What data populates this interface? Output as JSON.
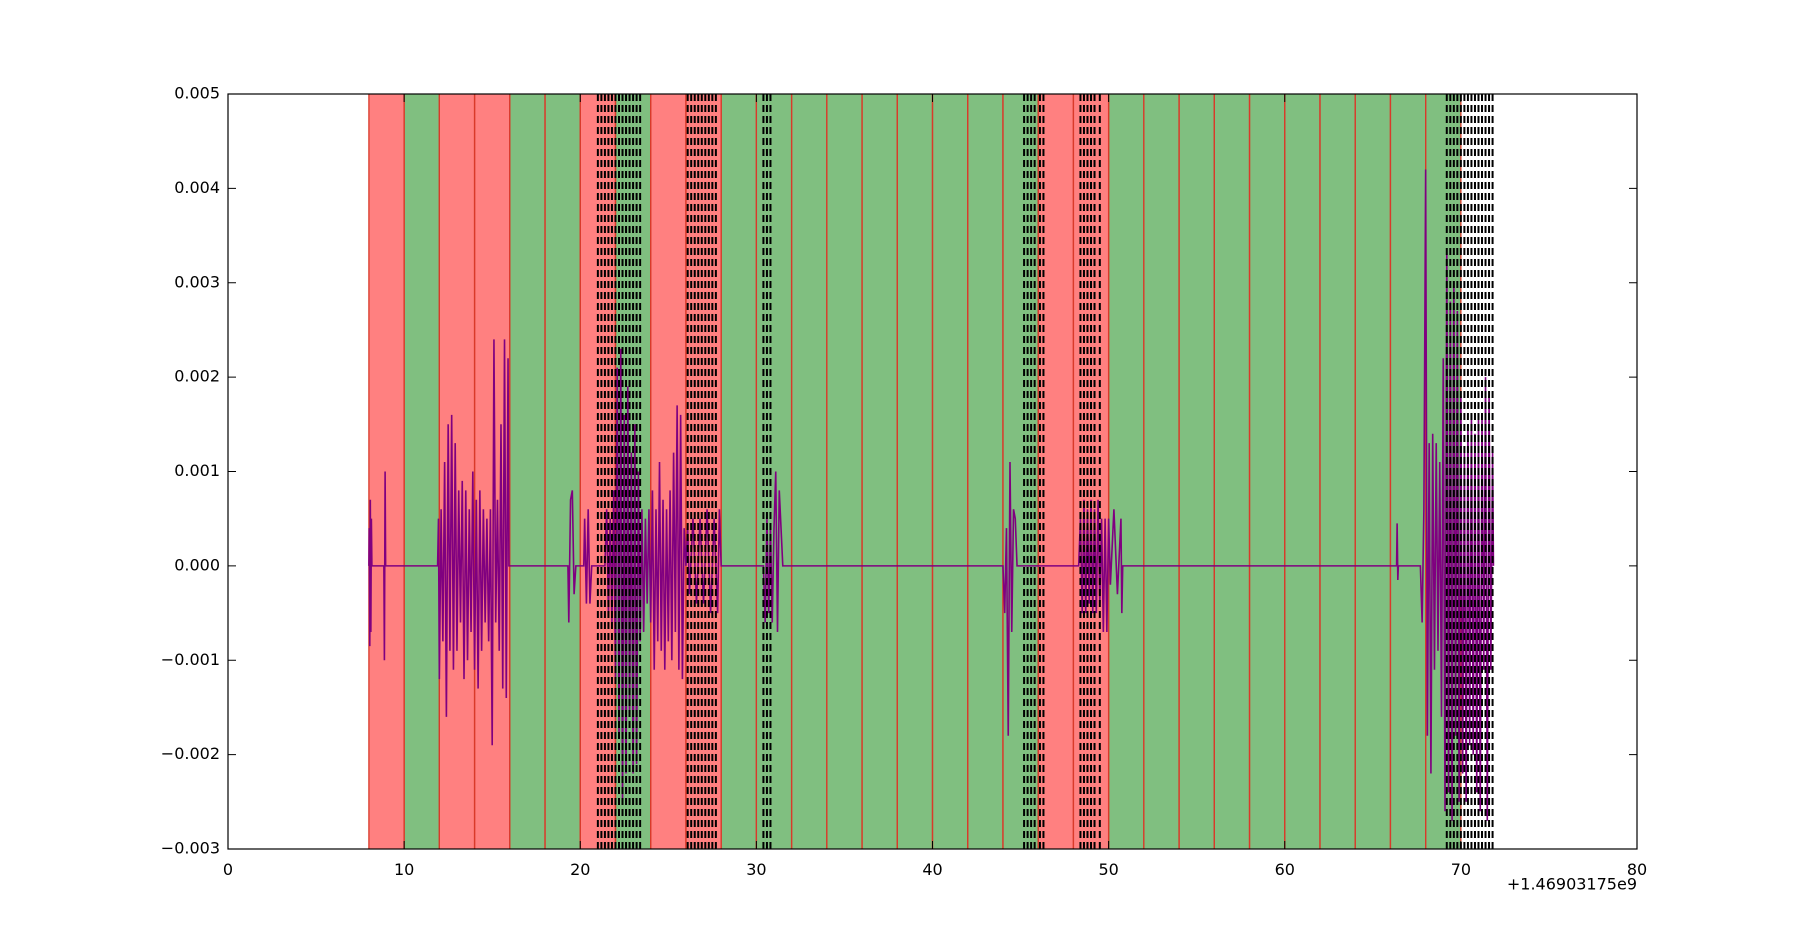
{
  "chart_data": {
    "type": "line",
    "x_offset_label": "+1.46903175e9",
    "xlim": [
      0,
      80
    ],
    "xticks": [
      0,
      10,
      20,
      30,
      40,
      50,
      60,
      70,
      80
    ],
    "ylim": [
      -0.003,
      0.005
    ],
    "yticks": [
      {
        "value": -0.003,
        "label": "−0.003"
      },
      {
        "value": -0.002,
        "label": "−0.002"
      },
      {
        "value": -0.001,
        "label": "−0.001"
      },
      {
        "value": 0,
        "label": "0.000"
      },
      0.001,
      0.002,
      0.003,
      0.004,
      0.005
    ],
    "spans": [
      {
        "start": 8,
        "end": 10,
        "color": "#ff8080"
      },
      {
        "start": 10,
        "end": 12,
        "color": "#80bf80"
      },
      {
        "start": 12,
        "end": 14,
        "color": "#ff8080"
      },
      {
        "start": 14,
        "end": 16,
        "color": "#ff8080"
      },
      {
        "start": 16,
        "end": 18,
        "color": "#80bf80"
      },
      {
        "start": 18,
        "end": 20,
        "color": "#80bf80"
      },
      {
        "start": 20,
        "end": 22,
        "color": "#ff8080"
      },
      {
        "start": 22,
        "end": 24,
        "color": "#80bf80"
      },
      {
        "start": 24,
        "end": 26,
        "color": "#ff8080"
      },
      {
        "start": 26,
        "end": 28,
        "color": "#ff8080"
      },
      {
        "start": 28,
        "end": 30,
        "color": "#80bf80"
      },
      {
        "start": 30,
        "end": 32,
        "color": "#80bf80"
      },
      {
        "start": 32,
        "end": 34,
        "color": "#80bf80"
      },
      {
        "start": 34,
        "end": 36,
        "color": "#80bf80"
      },
      {
        "start": 36,
        "end": 38,
        "color": "#80bf80"
      },
      {
        "start": 38,
        "end": 40,
        "color": "#80bf80"
      },
      {
        "start": 40,
        "end": 42,
        "color": "#80bf80"
      },
      {
        "start": 42,
        "end": 44,
        "color": "#80bf80"
      },
      {
        "start": 44,
        "end": 46,
        "color": "#80bf80"
      },
      {
        "start": 46,
        "end": 48,
        "color": "#ff8080"
      },
      {
        "start": 48,
        "end": 50,
        "color": "#ff8080"
      },
      {
        "start": 50,
        "end": 52,
        "color": "#80bf80"
      },
      {
        "start": 52,
        "end": 54,
        "color": "#80bf80"
      },
      {
        "start": 54,
        "end": 56,
        "color": "#80bf80"
      },
      {
        "start": 56,
        "end": 58,
        "color": "#80bf80"
      },
      {
        "start": 58,
        "end": 60,
        "color": "#80bf80"
      },
      {
        "start": 60,
        "end": 62,
        "color": "#80bf80"
      },
      {
        "start": 62,
        "end": 64,
        "color": "#80bf80"
      },
      {
        "start": 64,
        "end": 66,
        "color": "#80bf80"
      },
      {
        "start": 66,
        "end": 68,
        "color": "#80bf80"
      },
      {
        "start": 68,
        "end": 70,
        "color": "#80bf80"
      }
    ],
    "span_edge_color": "#d93a2a",
    "vlines": [
      21.0,
      21.2,
      21.4,
      21.6,
      21.8,
      22.0,
      22.2,
      22.4,
      22.6,
      22.8,
      23.0,
      23.2,
      23.4,
      26.1,
      26.3,
      26.5,
      26.7,
      26.9,
      27.1,
      27.3,
      27.5,
      27.7,
      30.4,
      30.6,
      30.8,
      45.2,
      45.4,
      45.6,
      45.8,
      46.1,
      46.3,
      48.4,
      48.6,
      48.8,
      49.0,
      49.2,
      49.5,
      69.2,
      69.4,
      69.6,
      69.8,
      70.0,
      70.2,
      70.4,
      70.6,
      70.8,
      71.0,
      71.2,
      71.4,
      71.6,
      71.8
    ],
    "vline_color": "#000000",
    "series": [
      {
        "color": "#800080",
        "x": [
          8.0,
          8.02,
          8.05,
          8.08,
          8.11,
          8.14,
          8.17,
          8.85,
          8.88,
          8.92,
          8.95,
          11.9,
          11.95,
          12.0,
          12.1,
          12.2,
          12.3,
          12.4,
          12.5,
          12.6,
          12.7,
          12.8,
          12.9,
          13.0,
          13.1,
          13.2,
          13.3,
          13.4,
          13.5,
          13.6,
          13.7,
          13.8,
          13.9,
          14.0,
          14.1,
          14.2,
          14.3,
          14.4,
          14.5,
          14.6,
          14.7,
          14.8,
          14.9,
          15.0,
          15.1,
          15.2,
          15.3,
          15.4,
          15.5,
          15.6,
          15.7,
          15.8,
          15.9,
          15.95,
          19.3,
          19.35,
          19.45,
          19.55,
          19.65,
          19.75,
          20.2,
          20.25,
          20.35,
          20.45,
          20.55,
          20.65,
          21.4,
          21.5,
          21.6,
          21.7,
          21.8,
          21.9,
          22.0,
          22.1,
          22.2,
          22.3,
          22.4,
          22.5,
          22.6,
          22.7,
          22.8,
          22.9,
          23.0,
          23.1,
          23.2,
          23.3,
          23.4,
          23.5,
          23.6,
          23.7,
          23.8,
          23.9,
          24.0,
          24.1,
          24.2,
          24.3,
          24.4,
          24.5,
          24.6,
          24.7,
          24.8,
          24.9,
          25.0,
          25.1,
          25.2,
          25.3,
          25.4,
          25.5,
          25.6,
          25.7,
          25.8,
          25.9,
          26.0,
          26.1,
          26.2,
          26.4,
          26.6,
          26.8,
          27.0,
          27.2,
          27.4,
          27.6,
          27.8,
          27.9,
          28.0,
          30.4,
          30.5,
          30.6,
          30.7,
          30.8,
          30.9,
          31.0,
          31.1,
          31.2,
          31.3,
          31.4,
          31.5,
          44.0,
          44.1,
          44.2,
          44.3,
          44.4,
          44.5,
          44.6,
          44.7,
          44.8,
          48.3,
          48.4,
          48.5,
          48.6,
          48.7,
          48.8,
          48.9,
          49.0,
          49.1,
          49.2,
          49.3,
          49.4,
          49.5,
          49.6,
          49.7,
          49.8,
          49.9,
          50.0,
          50.1,
          50.3,
          50.5,
          50.7,
          50.75,
          50.8,
          66.35,
          66.38,
          66.42,
          66.45,
          67.7,
          67.8,
          67.9,
          68.0,
          68.1,
          68.2,
          68.3,
          68.4,
          68.5,
          68.6,
          68.7,
          68.8,
          68.9,
          69.0,
          69.1,
          69.2,
          69.3,
          69.4,
          69.5,
          69.6,
          69.7,
          69.8,
          69.9,
          70.0,
          70.1,
          70.2,
          70.3,
          70.4,
          70.5,
          70.6,
          70.7,
          70.8,
          70.9,
          71.0,
          71.1,
          71.2,
          71.3,
          71.4,
          71.5,
          71.6,
          71.7,
          71.8,
          71.85
        ],
        "values": [
          0,
          0.0004,
          -0.00085,
          0.0007,
          -0.0007,
          0.0005,
          0,
          0,
          -0.001,
          0.001,
          0,
          0,
          0.0005,
          -0.0012,
          0.0006,
          -0.0008,
          0.0011,
          -0.0016,
          0.0015,
          -0.0009,
          0.0016,
          -0.0011,
          0.0013,
          -0.0009,
          0.0008,
          -0.0006,
          0.0009,
          -0.0012,
          0.0008,
          -0.001,
          0.0006,
          -0.0007,
          0.001,
          -0.0011,
          0.0007,
          -0.0013,
          0.0008,
          -0.0009,
          0.0006,
          -0.0006,
          0.0005,
          -0.0008,
          0.0006,
          -0.0019,
          0.0024,
          -0.0006,
          0.0007,
          -0.0009,
          0.0015,
          -0.0013,
          0.0024,
          -0.0014,
          0.0022,
          0,
          0,
          -0.0006,
          0.0007,
          0.0008,
          -0.0003,
          0,
          0,
          0.0005,
          -0.0004,
          0.0006,
          -0.0004,
          0,
          0,
          0.0006,
          -0.0005,
          0.0005,
          -0.0006,
          0.0008,
          -0.0012,
          0.0021,
          -0.0018,
          0.0023,
          -0.0025,
          0.0016,
          -0.0022,
          0.0019,
          -0.0016,
          0.0012,
          -0.0022,
          0.0015,
          -0.0021,
          0.001,
          -0.0008,
          0.0006,
          -0.0007,
          0.0005,
          -0.0004,
          0.0006,
          -0.0006,
          0.0008,
          -0.0011,
          0.0006,
          -0.0008,
          0.0011,
          -0.0009,
          0.0007,
          -0.0011,
          0.0006,
          -0.0008,
          0.0008,
          -0.001,
          0.0012,
          -0.0007,
          0.0017,
          -0.0011,
          0.0016,
          -0.0012,
          0.0004,
          0,
          0.0004,
          -0.0003,
          0.0005,
          -0.0004,
          0.0005,
          -0.0004,
          0.0006,
          -0.0005,
          0.0005,
          -0.0005,
          0.0006,
          0,
          0,
          -0.0006,
          0.0005,
          -0.0005,
          0.0004,
          -0.0006,
          0.0004,
          0.001,
          -0.0007,
          0.0008,
          0.0004,
          0,
          0,
          -0.0005,
          0.0004,
          -0.0018,
          0.0011,
          -0.0007,
          0.0006,
          0.0005,
          0,
          0,
          0.0005,
          -0.0005,
          0.0007,
          -0.0005,
          0.0006,
          -0.0004,
          0.0007,
          -0.0005,
          0.0006,
          -0.0005,
          0.0007,
          -0.0004,
          0.0005,
          -0.0007,
          0.0005,
          -0.0007,
          0.0005,
          -0.0002,
          0.0006,
          -0.0003,
          0.0005,
          -0.0005,
          0,
          0,
          0.00045,
          -0.00015,
          0,
          0,
          -0.0006,
          0.0006,
          0.0042,
          -0.0018,
          0.0013,
          -0.0022,
          0.0014,
          -0.0011,
          0.0013,
          -0.0009,
          0.0011,
          -0.0016,
          0.0022,
          -0.0026,
          0.0033,
          -0.0024,
          0.0028,
          -0.0027,
          0.003,
          -0.0018,
          0.0027,
          -0.0025,
          0.0018,
          -0.0022,
          0.0012,
          -0.0025,
          0.0015,
          -0.0019,
          0.0016,
          -0.002,
          0.0014,
          -0.0024,
          0.0016,
          -0.0026,
          0.0016,
          -0.0011,
          0.002,
          -0.0027,
          0.0018,
          -0.0011,
          0.0012,
          0
        ]
      }
    ]
  }
}
